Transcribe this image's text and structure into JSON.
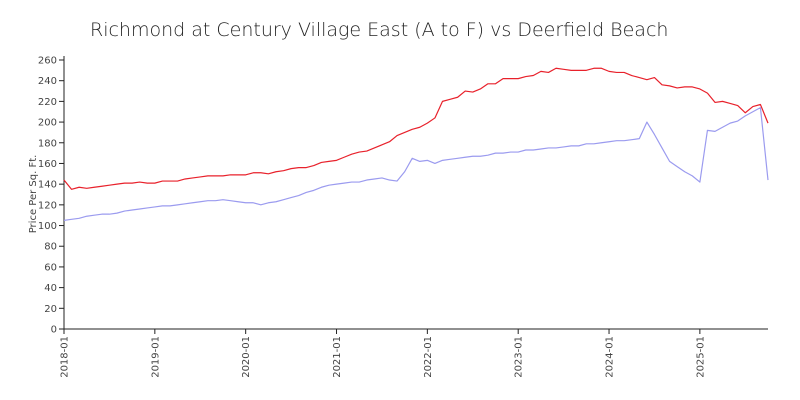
{
  "chart_data": {
    "type": "line",
    "title": "Richmond at Century Village East (A to F) vs Deerfield Beach",
    "xlabel": "",
    "ylabel": "Price Per Sq. Ft.",
    "ylim": [
      0,
      260
    ],
    "y_ticks": [
      0,
      20,
      40,
      60,
      80,
      100,
      120,
      140,
      160,
      180,
      200,
      220,
      240,
      260
    ],
    "x_range": [
      "2018-01",
      "2025-10"
    ],
    "x_ticks": [
      "2018-01",
      "2019-01",
      "2020-01",
      "2021-01",
      "2022-01",
      "2023-01",
      "2024-01",
      "2025-01"
    ],
    "grid": false,
    "legend": "none",
    "series": [
      {
        "color": "#e8212b",
        "points": [
          [
            "2018-01",
            144
          ],
          [
            "2018-02",
            135
          ],
          [
            "2018-03",
            137
          ],
          [
            "2018-04",
            136
          ],
          [
            "2018-05",
            137
          ],
          [
            "2018-06",
            138
          ],
          [
            "2018-07",
            139
          ],
          [
            "2018-08",
            140
          ],
          [
            "2018-09",
            141
          ],
          [
            "2018-10",
            141
          ],
          [
            "2018-11",
            142
          ],
          [
            "2018-12",
            141
          ],
          [
            "2019-01",
            141
          ],
          [
            "2019-02",
            143
          ],
          [
            "2019-03",
            143
          ],
          [
            "2019-04",
            143
          ],
          [
            "2019-05",
            145
          ],
          [
            "2019-06",
            146
          ],
          [
            "2019-07",
            147
          ],
          [
            "2019-08",
            148
          ],
          [
            "2019-09",
            148
          ],
          [
            "2019-10",
            148
          ],
          [
            "2019-11",
            149
          ],
          [
            "2019-12",
            149
          ],
          [
            "2020-01",
            149
          ],
          [
            "2020-02",
            151
          ],
          [
            "2020-03",
            151
          ],
          [
            "2020-04",
            150
          ],
          [
            "2020-05",
            152
          ],
          [
            "2020-06",
            153
          ],
          [
            "2020-07",
            155
          ],
          [
            "2020-08",
            156
          ],
          [
            "2020-09",
            156
          ],
          [
            "2020-10",
            158
          ],
          [
            "2020-11",
            161
          ],
          [
            "2020-12",
            162
          ],
          [
            "2021-01",
            163
          ],
          [
            "2021-02",
            166
          ],
          [
            "2021-03",
            169
          ],
          [
            "2021-04",
            171
          ],
          [
            "2021-05",
            172
          ],
          [
            "2021-06",
            175
          ],
          [
            "2021-07",
            178
          ],
          [
            "2021-08",
            181
          ],
          [
            "2021-09",
            187
          ],
          [
            "2021-10",
            190
          ],
          [
            "2021-11",
            193
          ],
          [
            "2021-12",
            195
          ],
          [
            "2022-01",
            199
          ],
          [
            "2022-02",
            204
          ],
          [
            "2022-03",
            220
          ],
          [
            "2022-04",
            222
          ],
          [
            "2022-05",
            224
          ],
          [
            "2022-06",
            230
          ],
          [
            "2022-07",
            229
          ],
          [
            "2022-08",
            232
          ],
          [
            "2022-09",
            237
          ],
          [
            "2022-10",
            237
          ],
          [
            "2022-11",
            242
          ],
          [
            "2022-12",
            242
          ],
          [
            "2023-01",
            242
          ],
          [
            "2023-02",
            244
          ],
          [
            "2023-03",
            245
          ],
          [
            "2023-04",
            249
          ],
          [
            "2023-05",
            248
          ],
          [
            "2023-06",
            252
          ],
          [
            "2023-07",
            251
          ],
          [
            "2023-08",
            250
          ],
          [
            "2023-09",
            250
          ],
          [
            "2023-10",
            250
          ],
          [
            "2023-11",
            252
          ],
          [
            "2023-12",
            252
          ],
          [
            "2024-01",
            249
          ],
          [
            "2024-02",
            248
          ],
          [
            "2024-03",
            248
          ],
          [
            "2024-04",
            245
          ],
          [
            "2024-05",
            243
          ],
          [
            "2024-06",
            241
          ],
          [
            "2024-07",
            243
          ],
          [
            "2024-08",
            236
          ],
          [
            "2024-09",
            235
          ],
          [
            "2024-10",
            233
          ],
          [
            "2024-11",
            234
          ],
          [
            "2024-12",
            234
          ],
          [
            "2025-01",
            232
          ],
          [
            "2025-02",
            228
          ],
          [
            "2025-03",
            219
          ],
          [
            "2025-04",
            220
          ],
          [
            "2025-05",
            218
          ],
          [
            "2025-06",
            216
          ],
          [
            "2025-07",
            209
          ],
          [
            "2025-08",
            215
          ],
          [
            "2025-09",
            217
          ],
          [
            "2025-10",
            199
          ]
        ]
      },
      {
        "color": "#9b9bef",
        "points": [
          [
            "2018-01",
            105
          ],
          [
            "2018-02",
            106
          ],
          [
            "2018-03",
            107
          ],
          [
            "2018-04",
            109
          ],
          [
            "2018-05",
            110
          ],
          [
            "2018-06",
            111
          ],
          [
            "2018-07",
            111
          ],
          [
            "2018-08",
            112
          ],
          [
            "2018-09",
            114
          ],
          [
            "2018-10",
            115
          ],
          [
            "2018-11",
            116
          ],
          [
            "2018-12",
            117
          ],
          [
            "2019-01",
            118
          ],
          [
            "2019-02",
            119
          ],
          [
            "2019-03",
            119
          ],
          [
            "2019-04",
            120
          ],
          [
            "2019-05",
            121
          ],
          [
            "2019-06",
            122
          ],
          [
            "2019-07",
            123
          ],
          [
            "2019-08",
            124
          ],
          [
            "2019-09",
            124
          ],
          [
            "2019-10",
            125
          ],
          [
            "2019-11",
            124
          ],
          [
            "2019-12",
            123
          ],
          [
            "2020-01",
            122
          ],
          [
            "2020-02",
            122
          ],
          [
            "2020-03",
            120
          ],
          [
            "2020-04",
            122
          ],
          [
            "2020-05",
            123
          ],
          [
            "2020-06",
            125
          ],
          [
            "2020-07",
            127
          ],
          [
            "2020-08",
            129
          ],
          [
            "2020-09",
            132
          ],
          [
            "2020-10",
            134
          ],
          [
            "2020-11",
            137
          ],
          [
            "2020-12",
            139
          ],
          [
            "2021-01",
            140
          ],
          [
            "2021-02",
            141
          ],
          [
            "2021-03",
            142
          ],
          [
            "2021-04",
            142
          ],
          [
            "2021-05",
            144
          ],
          [
            "2021-06",
            145
          ],
          [
            "2021-07",
            146
          ],
          [
            "2021-08",
            144
          ],
          [
            "2021-09",
            143
          ],
          [
            "2021-10",
            152
          ],
          [
            "2021-11",
            165
          ],
          [
            "2021-12",
            162
          ],
          [
            "2022-01",
            163
          ],
          [
            "2022-02",
            160
          ],
          [
            "2022-03",
            163
          ],
          [
            "2022-04",
            164
          ],
          [
            "2022-05",
            165
          ],
          [
            "2022-06",
            166
          ],
          [
            "2022-07",
            167
          ],
          [
            "2022-08",
            167
          ],
          [
            "2022-09",
            168
          ],
          [
            "2022-10",
            170
          ],
          [
            "2022-11",
            170
          ],
          [
            "2022-12",
            171
          ],
          [
            "2023-01",
            171
          ],
          [
            "2023-02",
            173
          ],
          [
            "2023-03",
            173
          ],
          [
            "2023-04",
            174
          ],
          [
            "2023-05",
            175
          ],
          [
            "2023-06",
            175
          ],
          [
            "2023-07",
            176
          ],
          [
            "2023-08",
            177
          ],
          [
            "2023-09",
            177
          ],
          [
            "2023-10",
            179
          ],
          [
            "2023-11",
            179
          ],
          [
            "2023-12",
            180
          ],
          [
            "2024-01",
            181
          ],
          [
            "2024-02",
            182
          ],
          [
            "2024-03",
            182
          ],
          [
            "2024-04",
            183
          ],
          [
            "2024-05",
            184
          ],
          [
            "2024-06",
            200
          ],
          [
            "2024-07",
            188
          ],
          [
            "2024-08",
            175
          ],
          [
            "2024-09",
            162
          ],
          [
            "2024-10",
            157
          ],
          [
            "2024-11",
            152
          ],
          [
            "2024-12",
            148
          ],
          [
            "2025-01",
            142
          ],
          [
            "2025-02",
            192
          ],
          [
            "2025-03",
            191
          ],
          [
            "2025-04",
            195
          ],
          [
            "2025-05",
            199
          ],
          [
            "2025-06",
            201
          ],
          [
            "2025-07",
            206
          ],
          [
            "2025-08",
            210
          ],
          [
            "2025-09",
            214
          ],
          [
            "2025-10",
            144
          ]
        ]
      }
    ]
  }
}
